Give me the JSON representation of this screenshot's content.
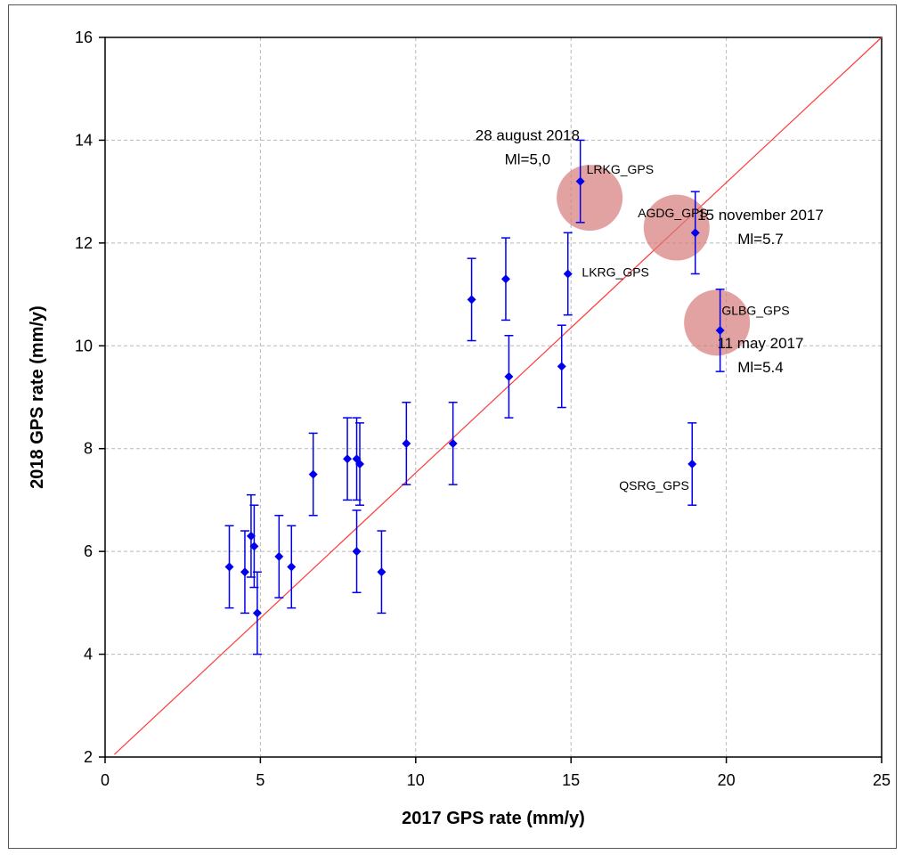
{
  "chart_data": {
    "type": "scatter",
    "title": "",
    "xlabel": "2017 GPS rate (mm/y)",
    "ylabel": "2018 GPS rate (mm/y)",
    "xlim": [
      0,
      25
    ],
    "ylim": [
      2,
      16
    ],
    "xticks": [
      0,
      5,
      10,
      15,
      20,
      25
    ],
    "yticks": [
      2,
      4,
      6,
      8,
      10,
      12,
      14,
      16
    ],
    "grid": true,
    "colors": {
      "points": "#0000ee",
      "reference_line": "#ff3b3b",
      "event_circles": "#d77a7a"
    },
    "reference_line": {
      "x": [
        0.3,
        25
      ],
      "y": [
        2.05,
        16
      ]
    },
    "series": [
      {
        "points": [
          {
            "x": 4.0,
            "y": 5.7,
            "err": 0.8
          },
          {
            "x": 4.5,
            "y": 5.6,
            "err": 0.8
          },
          {
            "x": 4.7,
            "y": 6.3,
            "err": 0.8
          },
          {
            "x": 4.8,
            "y": 6.1,
            "err": 0.8
          },
          {
            "x": 4.9,
            "y": 4.8,
            "err": 0.8
          },
          {
            "x": 5.6,
            "y": 5.9,
            "err": 0.8
          },
          {
            "x": 6.0,
            "y": 5.7,
            "err": 0.8
          },
          {
            "x": 6.7,
            "y": 7.5,
            "err": 0.8
          },
          {
            "x": 7.8,
            "y": 7.8,
            "err": 0.8
          },
          {
            "x": 8.1,
            "y": 7.8,
            "err": 0.8
          },
          {
            "x": 8.2,
            "y": 7.7,
            "err": 0.8
          },
          {
            "x": 8.1,
            "y": 6.0,
            "err": 0.8
          },
          {
            "x": 8.9,
            "y": 5.6,
            "err": 0.8
          },
          {
            "x": 9.7,
            "y": 8.1,
            "err": 0.8
          },
          {
            "x": 11.2,
            "y": 8.1,
            "err": 0.8
          },
          {
            "x": 11.8,
            "y": 10.9,
            "err": 0.8
          },
          {
            "x": 12.9,
            "y": 11.3,
            "err": 0.8
          },
          {
            "x": 13.0,
            "y": 9.4,
            "err": 0.8
          },
          {
            "x": 14.7,
            "y": 9.6,
            "err": 0.8
          },
          {
            "x": 14.9,
            "y": 11.4,
            "err": 0.8
          },
          {
            "x": 15.3,
            "y": 13.2,
            "err": 0.8
          },
          {
            "x": 19.0,
            "y": 12.2,
            "err": 0.8
          },
          {
            "x": 19.8,
            "y": 10.3,
            "err": 0.8
          },
          {
            "x": 18.9,
            "y": 7.7,
            "err": 0.8
          }
        ]
      }
    ],
    "station_labels": [
      {
        "text": "LRKG_GPS",
        "x": 15.5,
        "y": 13.35
      },
      {
        "text": "AGDG_GPS",
        "x": 17.15,
        "y": 12.5
      },
      {
        "text": "LKRG_GPS",
        "x": 15.35,
        "y": 11.35
      },
      {
        "text": "GLBG_GPS",
        "x": 19.85,
        "y": 10.6
      },
      {
        "text": "QSRG_GPS",
        "x": 16.55,
        "y": 7.2
      }
    ],
    "event_circles": [
      {
        "x": 15.6,
        "y": 12.88
      },
      {
        "x": 18.4,
        "y": 12.3
      },
      {
        "x": 19.7,
        "y": 10.45
      }
    ],
    "annotations": [
      {
        "lines": [
          "28 august 2018",
          "Ml=5,0"
        ],
        "x": 13.6,
        "y": 14.0
      },
      {
        "lines": [
          "15 november 2017",
          "Ml=5.7"
        ],
        "x": 21.1,
        "y": 12.45
      },
      {
        "lines": [
          "11 may 2017",
          "Ml=5.4"
        ],
        "x": 21.1,
        "y": 9.95
      }
    ]
  }
}
